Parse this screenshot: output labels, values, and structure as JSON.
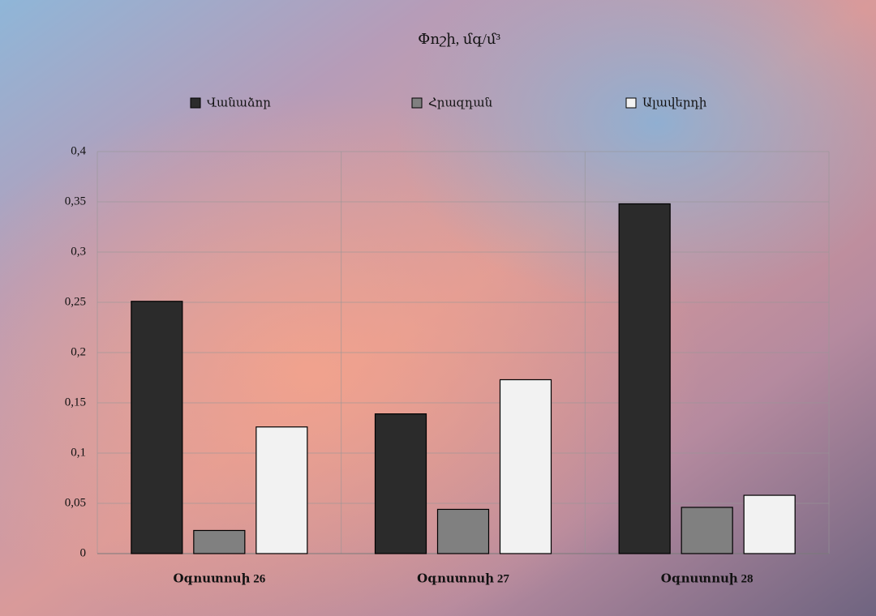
{
  "chart_data": {
    "type": "bar",
    "title": "Փոշի, մգ/մ³",
    "categories": [
      "Օգոստոսի 26",
      "Օգոստոսի 27",
      "Օգոստոսի 28"
    ],
    "series": [
      {
        "name": "Վանաձոր",
        "color": "#2b2b2b",
        "values": [
          0.251,
          0.139,
          0.348
        ]
      },
      {
        "name": "Հրազդան",
        "color": "#808080",
        "values": [
          0.023,
          0.044,
          0.046
        ]
      },
      {
        "name": "Ալավերդի",
        "color": "#f2f2f2",
        "values": [
          0.126,
          0.173,
          0.058
        ]
      }
    ],
    "ylim": [
      0,
      0.4
    ],
    "yticks": [
      0,
      {
        "value": 0.05,
        "label": "0,05"
      },
      {
        "value": 0.1,
        "label": "0,1"
      },
      {
        "value": 0.15,
        "label": "0,15"
      },
      {
        "value": 0.2,
        "label": "0,2"
      },
      {
        "value": 0.25,
        "label": "0,25"
      },
      {
        "value": 0.3,
        "label": "0,3"
      },
      {
        "value": 0.35,
        "label": "0,35"
      },
      {
        "value": 0.4,
        "label": "0,4"
      }
    ],
    "grid": true,
    "legend": "top"
  }
}
